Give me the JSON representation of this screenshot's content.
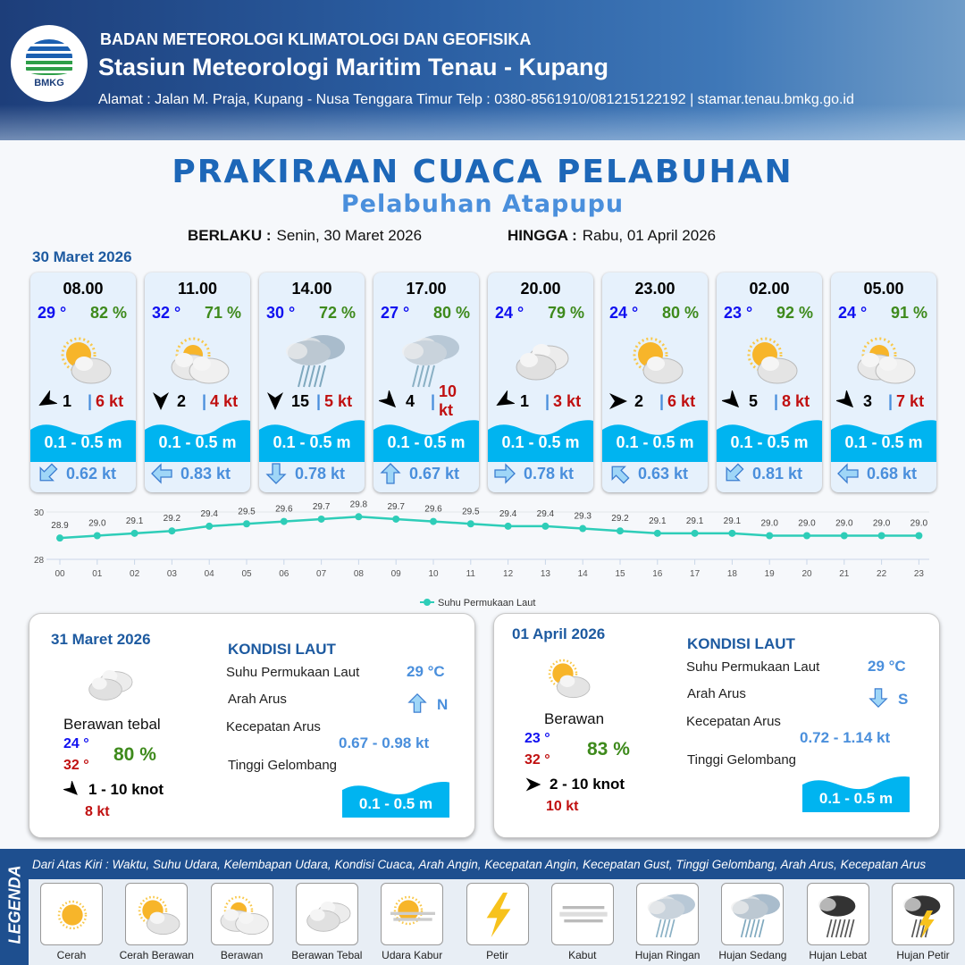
{
  "header": {
    "org": "BADAN METEOROLOGI KLIMATOLOGI DAN GEOFISIKA",
    "station": "Stasiun Meteorologi Maritim Tenau - Kupang",
    "address": "Alamat : Jalan M. Praja, Kupang - Nusa Tenggara Timur Telp : 0380-8561910/081215122192  | stamar.tenau.bmkg.go.id",
    "logo_text": "BMKG"
  },
  "title": "PRAKIRAAN CUACA PELABUHAN",
  "subtitle": "Pelabuhan Atapupu",
  "validity": {
    "from_label": "BERLAKU :",
    "from": "Senin, 30 Maret 2026",
    "to_label": "HINGGA :",
    "to": "Rabu, 01 April 2026"
  },
  "day1": {
    "date": "30 Maret 2026",
    "forecasts": [
      {
        "time": "08.00",
        "temp": "29 °",
        "hum": "82 %",
        "icon": "cerah-berawan",
        "wind_dir": "NE",
        "wind_rot": 240,
        "wind": "1",
        "gust": "6 kt",
        "wave": "0.1 - 0.5 m",
        "cur_rot": 225,
        "current": "0.62 kt"
      },
      {
        "time": "11.00",
        "temp": "32 °",
        "hum": "71 %",
        "icon": "berawan",
        "wind_dir": "N",
        "wind_rot": 180,
        "wind": "2",
        "gust": "4 kt",
        "wave": "0.1 - 0.5 m",
        "cur_rot": 270,
        "current": "0.83 kt"
      },
      {
        "time": "14.00",
        "temp": "30 °",
        "hum": "72 %",
        "icon": "hujan-sedang",
        "wind_dir": "N",
        "wind_rot": 180,
        "wind": "15",
        "gust": "5 kt",
        "wave": "0.1 - 0.5 m",
        "cur_rot": 180,
        "current": "0.78 kt"
      },
      {
        "time": "17.00",
        "temp": "27 °",
        "hum": "80 %",
        "icon": "hujan-ringan",
        "wind_dir": "NW",
        "wind_rot": 135,
        "wind": "4",
        "gust": "10 kt",
        "wave": "0.1 - 0.5 m",
        "cur_rot": 0,
        "current": "0.67 kt"
      },
      {
        "time": "20.00",
        "temp": "24 °",
        "hum": "79 %",
        "icon": "berawan-tebal",
        "wind_dir": "NE",
        "wind_rot": 240,
        "wind": "1",
        "gust": "3 kt",
        "wave": "0.1 - 0.5 m",
        "cur_rot": 90,
        "current": "0.78 kt"
      },
      {
        "time": "23.00",
        "temp": "24 °",
        "hum": "80 %",
        "icon": "cerah-berawan",
        "wind_dir": "W",
        "wind_rot": 90,
        "wind": "2",
        "gust": "6 kt",
        "wave": "0.1 - 0.5 m",
        "cur_rot": 315,
        "current": "0.63 kt"
      },
      {
        "time": "02.00",
        "temp": "23 °",
        "hum": "92 %",
        "icon": "cerah-berawan",
        "wind_dir": "NW",
        "wind_rot": 135,
        "wind": "5",
        "gust": "8 kt",
        "wave": "0.1 - 0.5 m",
        "cur_rot": 225,
        "current": "0.81 kt"
      },
      {
        "time": "05.00",
        "temp": "24 °",
        "hum": "91 %",
        "icon": "berawan",
        "wind_dir": "NW",
        "wind_rot": 135,
        "wind": "3",
        "gust": "7 kt",
        "wave": "0.1 - 0.5 m",
        "cur_rot": 270,
        "current": "0.68 kt"
      }
    ]
  },
  "chart_data": {
    "type": "line",
    "categories": [
      "00",
      "01",
      "02",
      "03",
      "04",
      "05",
      "06",
      "07",
      "08",
      "09",
      "10",
      "11",
      "12",
      "13",
      "14",
      "15",
      "16",
      "17",
      "18",
      "19",
      "20",
      "21",
      "22",
      "23"
    ],
    "series": [
      {
        "name": "Suhu Permukaan Laut",
        "values": [
          28.9,
          29.0,
          29.1,
          29.2,
          29.4,
          29.5,
          29.6,
          29.7,
          29.8,
          29.7,
          29.6,
          29.5,
          29.4,
          29.4,
          29.3,
          29.2,
          29.1,
          29.1,
          29.1,
          29.0,
          29.0,
          29.0,
          29.0,
          29.0
        ]
      }
    ],
    "ylim": [
      28,
      30
    ],
    "yticks": [
      "28",
      "30"
    ],
    "grid": true,
    "legend": "bottom",
    "color": "#2ecdb8"
  },
  "days": [
    {
      "date": "31 Maret 2026",
      "condition": "Berawan tebal",
      "icon": "berawan-tebal",
      "tmin": "24 °",
      "tmax": "32 °",
      "hum": "80 %",
      "wind_rot": 135,
      "wind": "1  - 10 knot",
      "gust": "8 kt",
      "sea": {
        "heading": "KONDISI LAUT",
        "sst_label": "Suhu Permukaan Laut",
        "sst": "29 °C",
        "dir_label": "Arah Arus",
        "dir": "N",
        "dir_rot": 0,
        "speed_label": "Kecepatan Arus",
        "speed": "0.67 - 0.98 kt",
        "wave_label": "Tinggi Gelombang",
        "wave": "0.1 - 0.5 m"
      }
    },
    {
      "date": "01 April 2026",
      "condition": "Berawan",
      "icon": "cerah-berawan",
      "tmin": "23 °",
      "tmax": "32 °",
      "hum": "83 %",
      "wind_rot": 90,
      "wind": "2  - 10 knot",
      "gust": "10 kt",
      "sea": {
        "heading": "KONDISI LAUT",
        "sst_label": "Suhu Permukaan Laut",
        "sst": "29 °C",
        "dir_label": "Arah Arus",
        "dir": "S",
        "dir_rot": 180,
        "speed_label": "Kecepatan Arus",
        "speed": "0.72 - 1.14 kt",
        "wave_label": "Tinggi Gelombang",
        "wave": "0.1 - 0.5 m"
      }
    }
  ],
  "legend": {
    "title": "LEGENDA",
    "description": "Dari Atas Kiri : Waktu, Suhu Udara, Kelembapan Udara, Kondisi Cuaca, Arah Angin, Kecepatan Angin, Kecepatan Gust, Tinggi Gelombang, Arah Arus, Kecepatan Arus",
    "items": [
      {
        "label": "Cerah",
        "icon": "cerah"
      },
      {
        "label": "Cerah Berawan",
        "icon": "cerah-berawan"
      },
      {
        "label": "Berawan",
        "icon": "berawan"
      },
      {
        "label": "Berawan Tebal",
        "icon": "berawan-tebal"
      },
      {
        "label": "Udara Kabur",
        "icon": "udara-kabur"
      },
      {
        "label": "Petir",
        "icon": "petir"
      },
      {
        "label": "Kabut",
        "icon": "kabut"
      },
      {
        "label": "Hujan Ringan",
        "icon": "hujan-ringan"
      },
      {
        "label": "Hujan Sedang",
        "icon": "hujan-sedang"
      },
      {
        "label": "Hujan Lebat",
        "icon": "hujan-lebat"
      },
      {
        "label": "Hujan Petir",
        "icon": "hujan-petir"
      }
    ]
  }
}
